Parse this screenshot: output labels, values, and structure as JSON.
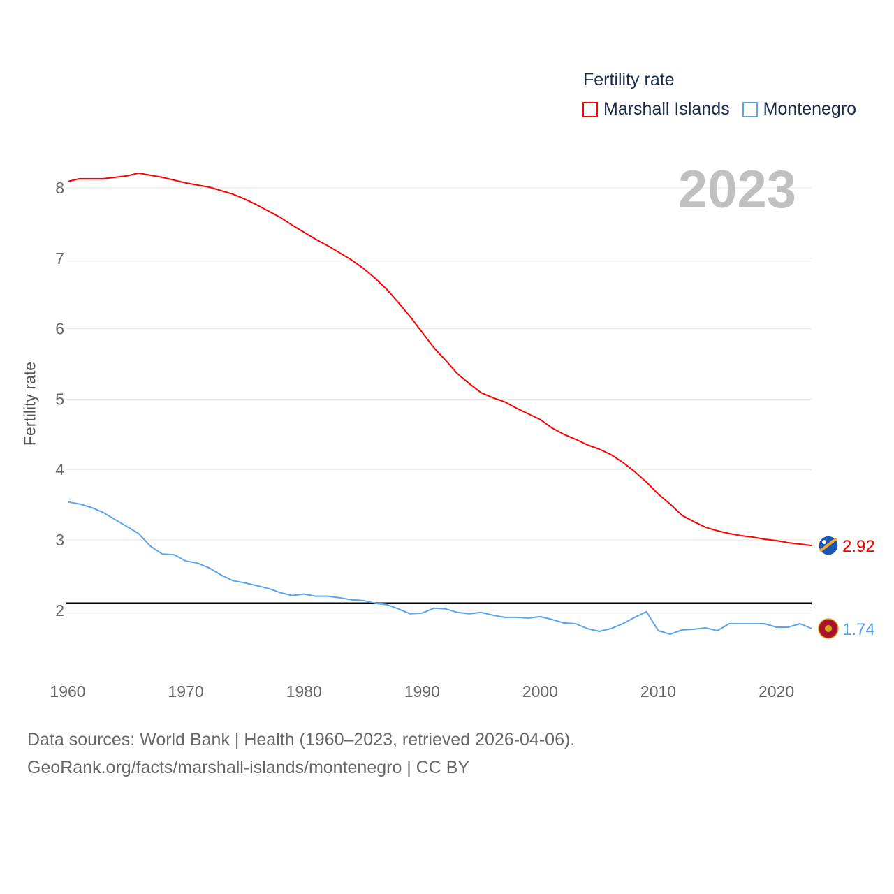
{
  "chart_data": {
    "type": "line",
    "title": "",
    "legend_title": "Fertility rate",
    "legend_placement": "top-right",
    "ylabel": "Fertility rate",
    "xlabel": "",
    "current_year": "2023",
    "xlim": [
      1960,
      2023
    ],
    "ylim": [
      1.2,
      8.4
    ],
    "yticks": [
      2,
      3,
      4,
      5,
      6,
      7,
      8
    ],
    "xticks": [
      1960,
      1970,
      1980,
      1990,
      2000,
      2010,
      2020
    ],
    "reference_line": 2.1,
    "grid": true,
    "x": [
      1960,
      1961,
      1962,
      1963,
      1964,
      1965,
      1966,
      1967,
      1968,
      1969,
      1970,
      1971,
      1972,
      1973,
      1974,
      1975,
      1976,
      1977,
      1978,
      1979,
      1980,
      1981,
      1982,
      1983,
      1984,
      1985,
      1986,
      1987,
      1988,
      1989,
      1990,
      1991,
      1992,
      1993,
      1994,
      1995,
      1996,
      1997,
      1998,
      1999,
      2000,
      2001,
      2002,
      2003,
      2004,
      2005,
      2006,
      2007,
      2008,
      2009,
      2010,
      2011,
      2012,
      2013,
      2014,
      2015,
      2016,
      2017,
      2018,
      2019,
      2020,
      2021,
      2022,
      2023
    ],
    "series": [
      {
        "name": "Marshall Islands",
        "color": "#ff0000",
        "end_label": "2.92",
        "values": [
          8.09,
          8.13,
          8.13,
          8.13,
          8.15,
          8.17,
          8.21,
          8.18,
          8.15,
          8.11,
          8.07,
          8.04,
          8.01,
          7.96,
          7.91,
          7.84,
          7.76,
          7.67,
          7.58,
          7.47,
          7.37,
          7.27,
          7.18,
          7.08,
          6.98,
          6.86,
          6.72,
          6.56,
          6.37,
          6.17,
          5.95,
          5.73,
          5.55,
          5.36,
          5.22,
          5.09,
          5.02,
          4.96,
          4.87,
          4.79,
          4.71,
          4.59,
          4.5,
          4.43,
          4.35,
          4.29,
          4.21,
          4.1,
          3.97,
          3.82,
          3.65,
          3.51,
          3.35,
          3.26,
          3.18,
          3.13,
          3.09,
          3.06,
          3.04,
          3.01,
          2.99,
          2.96,
          2.94,
          2.92
        ]
      },
      {
        "name": "Montenegro",
        "color": "#5ba4ec",
        "end_label": "1.74",
        "values": [
          3.54,
          3.51,
          3.46,
          3.39,
          3.29,
          3.19,
          3.09,
          2.91,
          2.8,
          2.79,
          2.7,
          2.67,
          2.6,
          2.5,
          2.42,
          2.39,
          2.35,
          2.31,
          2.25,
          2.21,
          2.23,
          2.2,
          2.2,
          2.18,
          2.15,
          2.14,
          2.1,
          2.08,
          2.02,
          1.95,
          1.96,
          2.03,
          2.02,
          1.97,
          1.95,
          1.97,
          1.93,
          1.9,
          1.9,
          1.89,
          1.91,
          1.87,
          1.82,
          1.81,
          1.74,
          1.7,
          1.74,
          1.81,
          1.9,
          1.98,
          1.71,
          1.66,
          1.72,
          1.73,
          1.75,
          1.71,
          1.81,
          1.81,
          1.81,
          1.81,
          1.76,
          1.76,
          1.81,
          1.74
        ]
      }
    ]
  },
  "footer": {
    "line1": "Data sources: World Bank | Health (1960–2023, retrieved 2026-04-06).",
    "line2": "GeoRank.org/facts/marshall-islands/montenegro | CC BY"
  }
}
